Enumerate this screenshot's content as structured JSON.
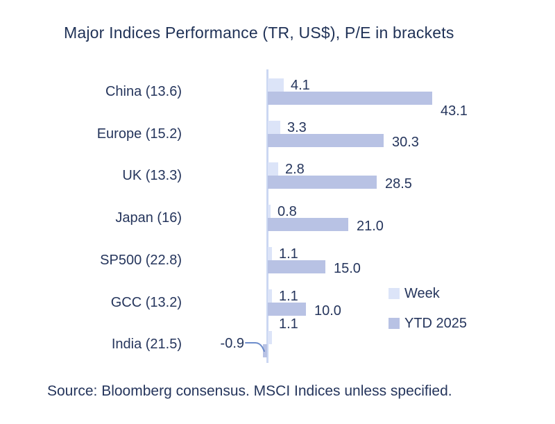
{
  "title": "Major Indices Performance (TR, US$), P/E in brackets",
  "source": "Source: Bloomberg consensus. MSCI Indices unless specified.",
  "legend": {
    "week_label": "Week",
    "ytd_label": "YTD 2025"
  },
  "colors": {
    "week_bar": "#dce4f8",
    "ytd_bar": "#b8c2e4",
    "axis": "#cbd7f2",
    "text": "#25355c",
    "leader_line": "#6c8ccb"
  },
  "chart_data": {
    "type": "bar",
    "orientation": "horizontal",
    "title": "Major Indices Performance (TR, US$), P/E in brackets",
    "categories": [
      "China (13.6)",
      "Europe (15.2)",
      "UK (13.3)",
      "Japan (16)",
      "SP500 (22.8)",
      "GCC (13.2)",
      "India (21.5)"
    ],
    "series": [
      {
        "name": "Week",
        "values": [
          4.1,
          3.3,
          2.8,
          0.8,
          1.1,
          1.1,
          1.1
        ]
      },
      {
        "name": "YTD 2025",
        "values": [
          43.1,
          30.3,
          28.5,
          21.0,
          15.0,
          10.0,
          -0.9
        ]
      }
    ],
    "value_labels": {
      "week": [
        "4.1",
        "3.3",
        "2.8",
        "0.8",
        "1.1",
        "1.1",
        "1.1"
      ],
      "ytd": [
        "43.1",
        "30.3",
        "28.5",
        "21.0",
        "15.0",
        "10.0",
        "-0.9"
      ]
    },
    "xlim": [
      -5,
      45
    ],
    "grid": false,
    "legend_position": "inside-bottom-right",
    "notes": "P/E ratios shown in brackets within category labels; negative India YTD value annotated with leader line callout"
  }
}
